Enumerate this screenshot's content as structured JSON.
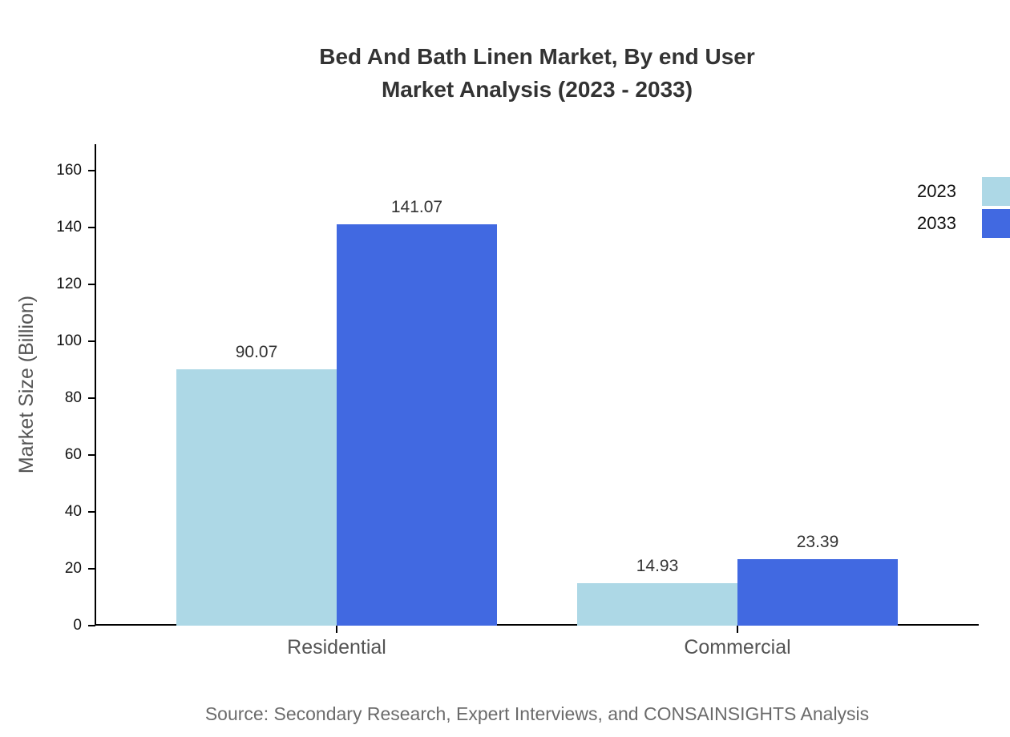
{
  "page": {
    "background": "#ffffff"
  },
  "chart_data": {
    "type": "bar",
    "title_lines": [
      "Bed And Bath Linen Market, By end User",
      "Market Analysis (2023 - 2033)"
    ],
    "categories": [
      "Residential",
      "Commercial"
    ],
    "series": [
      {
        "name": "2023",
        "color": "#add8e6",
        "values": [
          90.07,
          14.93
        ],
        "labels": [
          "90.07",
          "14.93"
        ]
      },
      {
        "name": "2033",
        "color": "#4169e1",
        "values": [
          141.07,
          23.39
        ],
        "labels": [
          "141.07",
          "23.39"
        ]
      }
    ],
    "ylabel": "Market Size (Billion)",
    "ylim": [
      0,
      160
    ],
    "yticks": [
      0,
      20,
      40,
      60,
      80,
      100,
      120,
      140,
      160
    ],
    "grid": false,
    "legend_position": "top-right",
    "axis_color": "#000000",
    "text_colors": {
      "title": "#333333",
      "ticks": "#111111",
      "values": "#333333",
      "categories": "#555555",
      "source": "#6b6b6b"
    }
  },
  "footer": {
    "source": "Source: Secondary Research, Expert Interviews, and CONSAINSIGHTS Analysis"
  }
}
